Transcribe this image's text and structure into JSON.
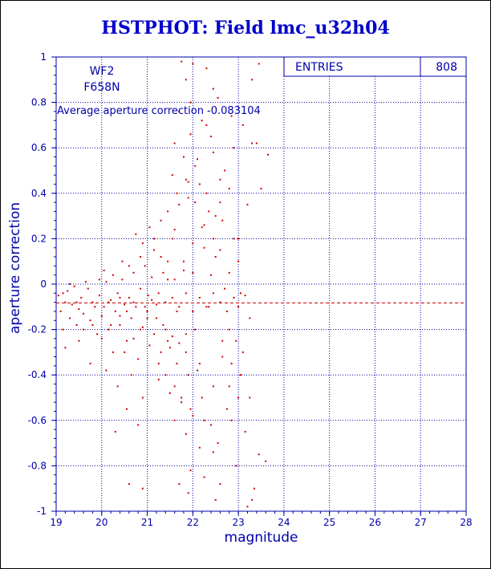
{
  "title": "HSTPHOT: Field lmc_u32h04",
  "chart_data": {
    "type": "scatter",
    "title": "HSTPHOT: Field lmc_u32h04",
    "xlabel": "magnitude",
    "ylabel": "aperture correction",
    "xlim": [
      19,
      28
    ],
    "ylim": [
      -1,
      1
    ],
    "x_ticks": [
      "19",
      "20",
      "21",
      "22",
      "23",
      "24",
      "25",
      "26",
      "27",
      "28"
    ],
    "y_ticks": [
      "-1",
      "-0.8",
      "-0.6",
      "-0.4",
      "-0.2",
      "0",
      "0.2",
      "0.4",
      "0.6",
      "0.8",
      "1"
    ],
    "grid": true,
    "annotations": {
      "camera": "WF2",
      "filter": "F658N",
      "average_text": "Average aperture correction  -0.083104"
    },
    "average_line": -0.083104,
    "stats_box": {
      "label": "ENTRIES",
      "value": "808"
    },
    "colors": {
      "points": "#cc0000",
      "axes": "#0000aa",
      "grid": "#0000aa",
      "title": "#0000cc"
    },
    "points": [
      [
        19.05,
        -0.05
      ],
      [
        19.1,
        -0.12
      ],
      [
        19.15,
        -0.2
      ],
      [
        19.2,
        -0.08
      ],
      [
        19.25,
        -0.03
      ],
      [
        19.3,
        -0.15
      ],
      [
        19.35,
        -0.09
      ],
      [
        19.4,
        -0.01
      ],
      [
        19.45,
        -0.18
      ],
      [
        19.5,
        -0.11
      ],
      [
        19.55,
        -0.06
      ],
      [
        19.6,
        -0.13
      ],
      [
        19.7,
        -0.02
      ],
      [
        19.75,
        -0.16
      ],
      [
        19.8,
        -0.08
      ],
      [
        19.9,
        -0.22
      ],
      [
        19.95,
        -0.05
      ],
      [
        20.0,
        -0.14
      ],
      [
        20.05,
        -0.1
      ],
      [
        20.1,
        0.01
      ],
      [
        20.15,
        -0.2
      ],
      [
        20.2,
        -0.07
      ],
      [
        20.25,
        -0.3
      ],
      [
        20.3,
        -0.12
      ],
      [
        20.35,
        -0.04
      ],
      [
        20.4,
        -0.18
      ],
      [
        20.45,
        0.02
      ],
      [
        20.5,
        -0.09
      ],
      [
        20.55,
        -0.25
      ],
      [
        20.6,
        -0.06
      ],
      [
        20.65,
        -0.15
      ],
      [
        20.7,
        0.05
      ],
      [
        20.75,
        -0.1
      ],
      [
        20.8,
        -0.33
      ],
      [
        20.85,
        -0.02
      ],
      [
        20.9,
        -0.19
      ],
      [
        20.95,
        0.08
      ],
      [
        21.0,
        -0.12
      ],
      [
        21.02,
        -0.05
      ],
      [
        21.05,
        -0.27
      ],
      [
        21.1,
        0.03
      ],
      [
        21.15,
        -0.22
      ],
      [
        21.2,
        -0.09
      ],
      [
        21.25,
        -0.35
      ],
      [
        21.3,
        0.12
      ],
      [
        21.35,
        -0.18
      ],
      [
        21.4,
        -0.4
      ],
      [
        21.45,
        0.02
      ],
      [
        21.5,
        -0.28
      ],
      [
        21.55,
        0.2
      ],
      [
        21.6,
        -0.45
      ],
      [
        21.65,
        -0.12
      ],
      [
        21.7,
        0.35
      ],
      [
        21.75,
        -0.5
      ],
      [
        21.8,
        0.1
      ],
      [
        21.85,
        -0.3
      ],
      [
        21.9,
        0.45
      ],
      [
        21.95,
        -0.55
      ],
      [
        22.0,
        0.05
      ],
      [
        22.05,
        -0.2
      ],
      [
        22.1,
        0.55
      ],
      [
        22.15,
        -0.35
      ],
      [
        22.2,
        0.25
      ],
      [
        22.25,
        -0.6
      ],
      [
        22.3,
        0.4
      ],
      [
        22.35,
        -0.1
      ],
      [
        22.4,
        0.65
      ],
      [
        22.45,
        -0.45
      ],
      [
        22.5,
        0.3
      ],
      [
        22.55,
        -0.7
      ],
      [
        22.6,
        0.15
      ],
      [
        22.65,
        -0.25
      ],
      [
        22.7,
        0.5
      ],
      [
        22.75,
        -0.55
      ],
      [
        22.8,
        0.05
      ],
      [
        22.85,
        -0.35
      ],
      [
        22.9,
        0.6
      ],
      [
        22.95,
        -0.8
      ],
      [
        23.0,
        0.2
      ],
      [
        23.05,
        -0.4
      ],
      [
        23.1,
        0.7
      ],
      [
        23.15,
        -0.65
      ],
      [
        23.2,
        0.35
      ],
      [
        23.25,
        -0.5
      ],
      [
        23.3,
        0.9
      ],
      [
        23.35,
        -0.9
      ],
      [
        23.4,
        0.62
      ],
      [
        23.45,
        -0.75
      ],
      [
        23.5,
        0.42
      ],
      [
        23.6,
        -0.78
      ],
      [
        21.75,
        0.98
      ],
      [
        22.0,
        0.97
      ],
      [
        22.3,
        0.95
      ],
      [
        23.45,
        0.97
      ],
      [
        21.95,
        0.8
      ],
      [
        22.55,
        0.82
      ],
      [
        21.7,
        0.76
      ],
      [
        22.2,
        0.72
      ],
      [
        22.85,
        0.74
      ],
      [
        23.3,
        0.62
      ],
      [
        21.8,
        0.56
      ],
      [
        22.05,
        0.52
      ],
      [
        22.45,
        0.58
      ],
      [
        23.65,
        0.57
      ],
      [
        21.55,
        0.48
      ],
      [
        22.15,
        0.44
      ],
      [
        22.6,
        0.46
      ],
      [
        21.9,
        0.38
      ],
      [
        22.35,
        0.32
      ],
      [
        22.65,
        0.28
      ],
      [
        21.6,
        0.24
      ],
      [
        22.0,
        0.18
      ],
      [
        22.25,
        0.16
      ],
      [
        22.5,
        0.12
      ],
      [
        21.45,
        0.1
      ],
      [
        21.8,
        0.06
      ],
      [
        22.4,
        0.04
      ],
      [
        22.7,
        -0.02
      ],
      [
        23.05,
        -0.04
      ],
      [
        20.6,
        0.08
      ],
      [
        20.25,
        0.04
      ],
      [
        19.95,
        0.02
      ],
      [
        19.65,
        0.01
      ],
      [
        19.3,
        0.0
      ],
      [
        20.85,
        0.12
      ],
      [
        20.45,
        0.1
      ],
      [
        20.05,
        0.06
      ],
      [
        21.15,
        0.15
      ],
      [
        21.35,
        0.05
      ],
      [
        21.6,
        0.02
      ],
      [
        21.2,
        -0.15
      ],
      [
        21.4,
        -0.2
      ],
      [
        21.55,
        -0.23
      ],
      [
        21.7,
        -0.26
      ],
      [
        21.85,
        -0.22
      ],
      [
        21.3,
        -0.3
      ],
      [
        21.45,
        -0.25
      ],
      [
        21.65,
        -0.35
      ],
      [
        21.9,
        -0.4
      ],
      [
        22.1,
        -0.38
      ],
      [
        21.25,
        -0.42
      ],
      [
        21.5,
        -0.48
      ],
      [
        21.75,
        -0.52
      ],
      [
        22.0,
        -0.58
      ],
      [
        22.2,
        -0.5
      ],
      [
        22.4,
        -0.62
      ],
      [
        21.6,
        -0.6
      ],
      [
        21.85,
        -0.66
      ],
      [
        22.15,
        -0.72
      ],
      [
        22.45,
        -0.74
      ],
      [
        21.95,
        -0.82
      ],
      [
        22.25,
        -0.85
      ],
      [
        21.7,
        -0.88
      ],
      [
        22.6,
        -0.88
      ],
      [
        23.3,
        -0.95
      ],
      [
        23.2,
        -0.98
      ],
      [
        21.9,
        -0.92
      ],
      [
        22.5,
        -0.95
      ],
      [
        20.6,
        -0.88
      ],
      [
        20.9,
        -0.9
      ],
      [
        20.3,
        -0.65
      ],
      [
        20.55,
        -0.55
      ],
      [
        20.8,
        -0.62
      ],
      [
        20.35,
        -0.45
      ],
      [
        20.65,
        -0.4
      ],
      [
        20.9,
        -0.5
      ],
      [
        20.1,
        -0.38
      ],
      [
        20.5,
        -0.3
      ],
      [
        19.75,
        -0.35
      ],
      [
        19.5,
        -0.25
      ],
      [
        19.2,
        -0.28
      ],
      [
        19.6,
        -0.2
      ],
      [
        19.85,
        -0.1
      ],
      [
        20.15,
        -0.08
      ],
      [
        20.4,
        -0.06
      ],
      [
        20.7,
        -0.08
      ],
      [
        20.95,
        -0.1
      ],
      [
        21.1,
        -0.07
      ],
      [
        21.25,
        -0.04
      ],
      [
        21.4,
        -0.08
      ],
      [
        21.55,
        -0.06
      ],
      [
        21.7,
        -0.1
      ],
      [
        21.85,
        -0.04
      ],
      [
        22.0,
        -0.12
      ],
      [
        22.15,
        -0.06
      ],
      [
        22.3,
        -0.1
      ],
      [
        22.45,
        -0.04
      ],
      [
        22.6,
        -0.08
      ],
      [
        22.75,
        -0.12
      ],
      [
        22.9,
        -0.06
      ],
      [
        23.0,
        -0.1
      ],
      [
        23.15,
        -0.05
      ],
      [
        23.25,
        -0.15
      ],
      [
        22.8,
        -0.2
      ],
      [
        22.95,
        -0.25
      ],
      [
        23.1,
        -0.3
      ],
      [
        22.65,
        -0.32
      ],
      [
        22.8,
        -0.45
      ],
      [
        23.0,
        -0.5
      ],
      [
        22.85,
        -0.6
      ],
      [
        21.0,
        -0.15
      ],
      [
        20.85,
        -0.2
      ],
      [
        20.7,
        -0.24
      ],
      [
        20.55,
        -0.12
      ],
      [
        20.4,
        -0.14
      ],
      [
        20.2,
        -0.18
      ],
      [
        20.0,
        -0.24
      ],
      [
        19.8,
        -0.18
      ],
      [
        19.45,
        -0.08
      ],
      [
        19.15,
        -0.04
      ],
      [
        21.15,
        0.2
      ],
      [
        21.05,
        0.25
      ],
      [
        20.9,
        0.18
      ],
      [
        20.75,
        0.22
      ],
      [
        21.3,
        0.28
      ],
      [
        21.45,
        0.32
      ],
      [
        21.65,
        0.4
      ],
      [
        21.85,
        0.46
      ],
      [
        22.05,
        0.36
      ],
      [
        22.25,
        0.26
      ],
      [
        22.45,
        0.2
      ],
      [
        22.6,
        0.36
      ],
      [
        22.8,
        0.42
      ],
      [
        22.9,
        0.2
      ],
      [
        23.0,
        0.1
      ],
      [
        21.6,
        0.62
      ],
      [
        21.95,
        0.66
      ],
      [
        22.3,
        0.7
      ],
      [
        22.45,
        0.86
      ],
      [
        21.85,
        0.9
      ]
    ]
  }
}
